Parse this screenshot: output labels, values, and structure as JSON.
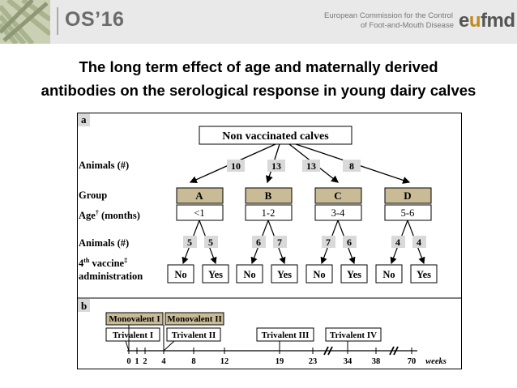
{
  "header": {
    "conference": "OS’16",
    "org_line1": "European Commission for the Control",
    "org_line2": "of Foot-and-Mouth Disease",
    "logo_e": "e",
    "logo_o": "u",
    "logo_rest": "fmd",
    "accent_color": "#c4891d"
  },
  "title": {
    "line1": "The long term effect of age and maternally derived",
    "line2": "antibodies on the serological response in young dairy calves"
  },
  "panel_a": {
    "label": "a",
    "root": "Non vaccinated calves",
    "row_animals1": "Animals (#)",
    "row_group": "Group",
    "row_age": "Age",
    "row_age_sup": "†",
    "row_age_unit": " (months)",
    "row_animals2": "Animals (#)",
    "row_vaccine_line1_pre": "4",
    "row_vaccine_line1_sup": "th",
    "row_vaccine_line1_post": " vaccine",
    "row_vaccine_line1_mark": "‡",
    "row_vaccine_line2": "administration",
    "group_counts": [
      "10",
      "13",
      "13",
      "8"
    ],
    "groups": [
      {
        "name": "A",
        "age": "<1",
        "split": [
          "5",
          "5"
        ]
      },
      {
        "name": "B",
        "age": "1-2",
        "split": [
          "6",
          "7"
        ]
      },
      {
        "name": "C",
        "age": "3-4",
        "split": [
          "7",
          "6"
        ]
      },
      {
        "name": "D",
        "age": "5-6",
        "split": [
          "4",
          "4"
        ]
      }
    ],
    "no_label": "No",
    "yes_label": "Yes",
    "group_fill": "#c8bb96"
  },
  "panel_b": {
    "label": "b",
    "mono1": "Monovalent I",
    "mono2": "Monovalent II",
    "tri1": "Trivalent I",
    "tri2": "Trivalent II",
    "tri3": "Trivalent III",
    "tri4": "Trivalent IV",
    "ticks": [
      "0",
      "1",
      "2",
      "4",
      "8",
      "12",
      "19",
      "23",
      "34",
      "38",
      "70"
    ],
    "unit": "weeks"
  }
}
